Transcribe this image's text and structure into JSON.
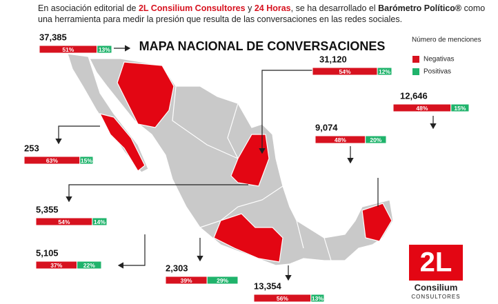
{
  "intro": {
    "p1": "En asociación editorial de",
    "brand": "2L Consilium Consultores",
    "p2": "y",
    "paper": "24 Horas",
    "p3": ", se ha desarrollado el",
    "product": "Barómetro Político®",
    "p4": "como una herramienta para medir la presión que resulta de las conversaciones en las redes sociales."
  },
  "title": "MAPA NACIONAL DE CONVERSACIONES",
  "legend": {
    "title": "Número de menciones",
    "items": [
      {
        "label": "Negativas",
        "color": "#d7121f"
      },
      {
        "label": "Positivas",
        "color": "#1fb36b"
      }
    ]
  },
  "callouts": [
    {
      "count": "37,385",
      "negative": {
        "value": 51,
        "label": "51%"
      },
      "positive": {
        "value": 13,
        "label": "13%"
      }
    },
    {
      "count": "31,120",
      "negative": {
        "value": 54,
        "label": "54%"
      },
      "positive": {
        "value": 12,
        "label": "12%"
      }
    },
    {
      "count": "12,646",
      "negative": {
        "value": 48,
        "label": "48%"
      },
      "positive": {
        "value": 15,
        "label": "15%"
      }
    },
    {
      "count": "9,074",
      "negative": {
        "value": 48,
        "label": "48%"
      },
      "positive": {
        "value": 20,
        "label": "20%"
      }
    },
    {
      "count": "253",
      "negative": {
        "value": 63,
        "label": "63%"
      },
      "positive": {
        "value": 15,
        "label": "15%"
      }
    },
    {
      "count": "5,355",
      "negative": {
        "value": 54,
        "label": "54%"
      },
      "positive": {
        "value": 14,
        "label": "14%"
      }
    },
    {
      "count": "5,105",
      "negative": {
        "value": 37,
        "label": "37%"
      },
      "positive": {
        "value": 22,
        "label": "22%"
      }
    },
    {
      "count": "2,303",
      "negative": {
        "value": 39,
        "label": "39%"
      },
      "positive": {
        "value": 29,
        "label": "29%"
      }
    },
    {
      "count": "13,354",
      "negative": {
        "value": 56,
        "label": "56%"
      },
      "positive": {
        "value": 13,
        "label": "13%"
      }
    }
  ],
  "logo": {
    "mark": "2L",
    "name": "Consilium",
    "sub": "CONSULTORES"
  }
}
